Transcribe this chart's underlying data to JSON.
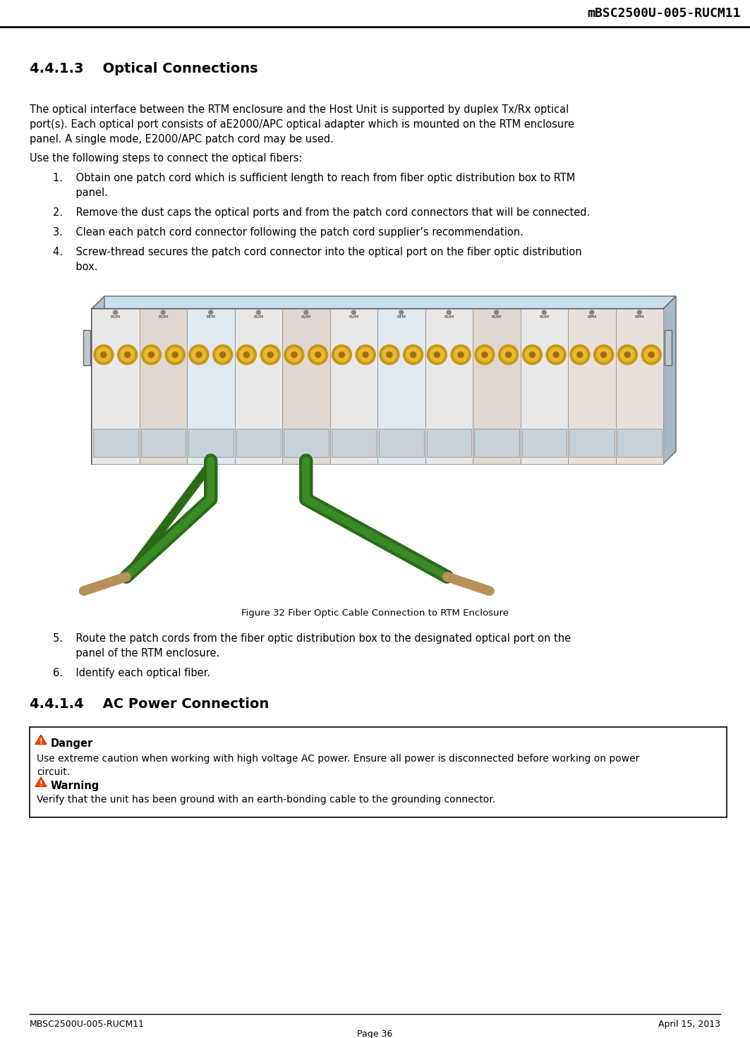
{
  "header_title": "mBSC2500U-005-RUCM11",
  "footer_left": "MBSC2500U-005-RUCM11",
  "footer_right": "April 15, 2013",
  "footer_page": "Page 36",
  "section_title": "4.4.1.3    Optical Connections",
  "section_title2": "4.4.1.4    AC Power Connection",
  "para1_lines": [
    "The optical interface between the RTM enclosure and the Host Unit is supported by duplex Tx/Rx optical",
    "port(s). Each optical port consists of aE2000/APC optical adapter which is mounted on the RTM enclosure",
    "panel. A single mode, E2000/APC patch cord may be used."
  ],
  "para2": "Use the following steps to connect the optical fibers:",
  "item1a": "1.    Obtain one patch cord which is sufficient length to reach from fiber optic distribution box to RTM",
  "item1b": "       panel.",
  "item2": "2.    Remove the dust caps the optical ports and from the patch cord connectors that will be connected.",
  "item3": "3.    Clean each patch cord connector following the patch cord supplier’s recommendation.",
  "item4a": "4.    Screw-thread secures the patch cord connector into the optical port on the fiber optic distribution",
  "item4b": "       box.",
  "figure_caption": "Figure 32 Fiber Optic Cable Connection to RTM Enclosure",
  "item5a": "5.    Route the patch cords from the fiber optic distribution box to the designated optical port on the",
  "item5b": "       panel of the RTM enclosure.",
  "item6": "6.    Identify each optical fiber.",
  "danger_title": "Danger",
  "danger_line1": "Use extreme caution when working with high voltage AC power. Ensure all power is disconnected before working on power",
  "danger_line2": "circuit.",
  "warning_title": "Warning",
  "warning_text": "Verify that the unit has been ground with an earth-bonding cable to the grounding connector.",
  "bg_color": "#ffffff",
  "text_color": "#000000",
  "header_line_color": "#000000",
  "slot_labels": [
    "RUM",
    "RUM",
    "RTM",
    "RUM",
    "RUM",
    "RUM",
    "RTM",
    "RUM",
    "RUM",
    "RUM",
    "RPM",
    "RPM"
  ],
  "slot_colors": [
    "#e8e8e8",
    "#e0d8d0",
    "#e0e8f0",
    "#e8e8e8",
    "#e0d8d0",
    "#e8e8e8",
    "#e0e8f0",
    "#e8e8e8",
    "#e0d8d0",
    "#e8e8e8",
    "#e8e0d8",
    "#e8e0d8"
  ]
}
